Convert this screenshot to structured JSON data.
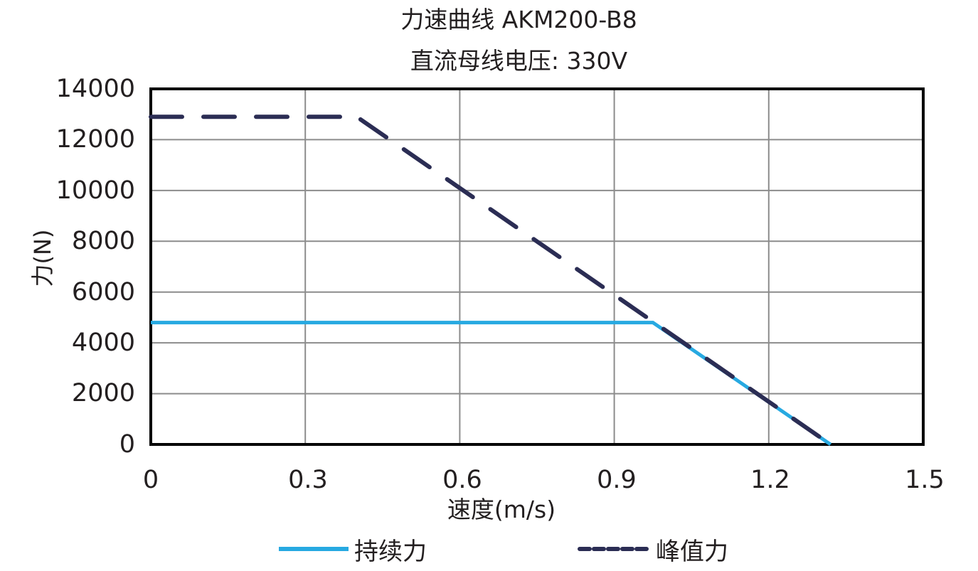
{
  "chart_data": {
    "type": "line",
    "title": "力速曲线 AKM200-B8",
    "subtitle": "直流母线电压: 330V",
    "xlabel": "速度(m/s)",
    "ylabel": "力(N)",
    "xlim": [
      0,
      1.5
    ],
    "ylim": [
      0,
      14000
    ],
    "x_ticks": [
      "0",
      "0.3",
      "0.6",
      "0.9",
      "1.2",
      "1.5"
    ],
    "y_ticks": [
      "14000",
      "12000",
      "10000",
      "8000",
      "6000",
      "4000",
      "2000",
      "0"
    ],
    "grid": true,
    "legend_position": "bottom",
    "series": [
      {
        "name": "持续力",
        "color": "#27a9e1",
        "style": "solid",
        "points": [
          [
            0,
            4800
          ],
          [
            0.975,
            4800
          ],
          [
            1.32,
            0
          ]
        ]
      },
      {
        "name": "峰值力",
        "color": "#2b2d54",
        "style": "dashed",
        "points": [
          [
            0,
            12900
          ],
          [
            0.4,
            12900
          ],
          [
            1.32,
            0
          ]
        ]
      }
    ]
  },
  "legend": {
    "continuous": "持续力",
    "peak": "峰值力"
  }
}
